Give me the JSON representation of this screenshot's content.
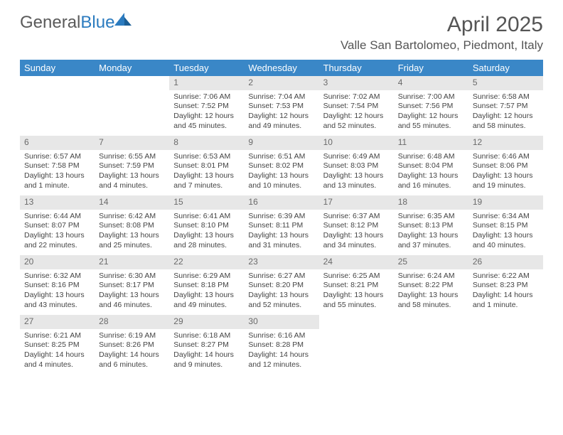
{
  "logo": {
    "text1": "General",
    "text2": "Blue"
  },
  "title": "April 2025",
  "location": "Valle San Bartolomeo, Piedmont, Italy",
  "colors": {
    "header_bg": "#3a87c7",
    "header_text": "#ffffff",
    "daynum_bg": "#e7e7e7",
    "daynum_text": "#6a6a6a",
    "body_text": "#444444",
    "title_text": "#555555",
    "logo_gray": "#5a5a5a",
    "logo_blue": "#2b7bbf",
    "background": "#ffffff"
  },
  "fonts": {
    "title_size": 30,
    "location_size": 17,
    "header_size": 13,
    "daynum_size": 12,
    "body_size": 10.5
  },
  "day_headers": [
    "Sunday",
    "Monday",
    "Tuesday",
    "Wednesday",
    "Thursday",
    "Friday",
    "Saturday"
  ],
  "weeks": [
    [
      {
        "empty": true
      },
      {
        "empty": true
      },
      {
        "num": "1",
        "sunrise": "Sunrise: 7:06 AM",
        "sunset": "Sunset: 7:52 PM",
        "daylight": "Daylight: 12 hours and 45 minutes."
      },
      {
        "num": "2",
        "sunrise": "Sunrise: 7:04 AM",
        "sunset": "Sunset: 7:53 PM",
        "daylight": "Daylight: 12 hours and 49 minutes."
      },
      {
        "num": "3",
        "sunrise": "Sunrise: 7:02 AM",
        "sunset": "Sunset: 7:54 PM",
        "daylight": "Daylight: 12 hours and 52 minutes."
      },
      {
        "num": "4",
        "sunrise": "Sunrise: 7:00 AM",
        "sunset": "Sunset: 7:56 PM",
        "daylight": "Daylight: 12 hours and 55 minutes."
      },
      {
        "num": "5",
        "sunrise": "Sunrise: 6:58 AM",
        "sunset": "Sunset: 7:57 PM",
        "daylight": "Daylight: 12 hours and 58 minutes."
      }
    ],
    [
      {
        "num": "6",
        "sunrise": "Sunrise: 6:57 AM",
        "sunset": "Sunset: 7:58 PM",
        "daylight": "Daylight: 13 hours and 1 minute."
      },
      {
        "num": "7",
        "sunrise": "Sunrise: 6:55 AM",
        "sunset": "Sunset: 7:59 PM",
        "daylight": "Daylight: 13 hours and 4 minutes."
      },
      {
        "num": "8",
        "sunrise": "Sunrise: 6:53 AM",
        "sunset": "Sunset: 8:01 PM",
        "daylight": "Daylight: 13 hours and 7 minutes."
      },
      {
        "num": "9",
        "sunrise": "Sunrise: 6:51 AM",
        "sunset": "Sunset: 8:02 PM",
        "daylight": "Daylight: 13 hours and 10 minutes."
      },
      {
        "num": "10",
        "sunrise": "Sunrise: 6:49 AM",
        "sunset": "Sunset: 8:03 PM",
        "daylight": "Daylight: 13 hours and 13 minutes."
      },
      {
        "num": "11",
        "sunrise": "Sunrise: 6:48 AM",
        "sunset": "Sunset: 8:04 PM",
        "daylight": "Daylight: 13 hours and 16 minutes."
      },
      {
        "num": "12",
        "sunrise": "Sunrise: 6:46 AM",
        "sunset": "Sunset: 8:06 PM",
        "daylight": "Daylight: 13 hours and 19 minutes."
      }
    ],
    [
      {
        "num": "13",
        "sunrise": "Sunrise: 6:44 AM",
        "sunset": "Sunset: 8:07 PM",
        "daylight": "Daylight: 13 hours and 22 minutes."
      },
      {
        "num": "14",
        "sunrise": "Sunrise: 6:42 AM",
        "sunset": "Sunset: 8:08 PM",
        "daylight": "Daylight: 13 hours and 25 minutes."
      },
      {
        "num": "15",
        "sunrise": "Sunrise: 6:41 AM",
        "sunset": "Sunset: 8:10 PM",
        "daylight": "Daylight: 13 hours and 28 minutes."
      },
      {
        "num": "16",
        "sunrise": "Sunrise: 6:39 AM",
        "sunset": "Sunset: 8:11 PM",
        "daylight": "Daylight: 13 hours and 31 minutes."
      },
      {
        "num": "17",
        "sunrise": "Sunrise: 6:37 AM",
        "sunset": "Sunset: 8:12 PM",
        "daylight": "Daylight: 13 hours and 34 minutes."
      },
      {
        "num": "18",
        "sunrise": "Sunrise: 6:35 AM",
        "sunset": "Sunset: 8:13 PM",
        "daylight": "Daylight: 13 hours and 37 minutes."
      },
      {
        "num": "19",
        "sunrise": "Sunrise: 6:34 AM",
        "sunset": "Sunset: 8:15 PM",
        "daylight": "Daylight: 13 hours and 40 minutes."
      }
    ],
    [
      {
        "num": "20",
        "sunrise": "Sunrise: 6:32 AM",
        "sunset": "Sunset: 8:16 PM",
        "daylight": "Daylight: 13 hours and 43 minutes."
      },
      {
        "num": "21",
        "sunrise": "Sunrise: 6:30 AM",
        "sunset": "Sunset: 8:17 PM",
        "daylight": "Daylight: 13 hours and 46 minutes."
      },
      {
        "num": "22",
        "sunrise": "Sunrise: 6:29 AM",
        "sunset": "Sunset: 8:18 PM",
        "daylight": "Daylight: 13 hours and 49 minutes."
      },
      {
        "num": "23",
        "sunrise": "Sunrise: 6:27 AM",
        "sunset": "Sunset: 8:20 PM",
        "daylight": "Daylight: 13 hours and 52 minutes."
      },
      {
        "num": "24",
        "sunrise": "Sunrise: 6:25 AM",
        "sunset": "Sunset: 8:21 PM",
        "daylight": "Daylight: 13 hours and 55 minutes."
      },
      {
        "num": "25",
        "sunrise": "Sunrise: 6:24 AM",
        "sunset": "Sunset: 8:22 PM",
        "daylight": "Daylight: 13 hours and 58 minutes."
      },
      {
        "num": "26",
        "sunrise": "Sunrise: 6:22 AM",
        "sunset": "Sunset: 8:23 PM",
        "daylight": "Daylight: 14 hours and 1 minute."
      }
    ],
    [
      {
        "num": "27",
        "sunrise": "Sunrise: 6:21 AM",
        "sunset": "Sunset: 8:25 PM",
        "daylight": "Daylight: 14 hours and 4 minutes."
      },
      {
        "num": "28",
        "sunrise": "Sunrise: 6:19 AM",
        "sunset": "Sunset: 8:26 PM",
        "daylight": "Daylight: 14 hours and 6 minutes."
      },
      {
        "num": "29",
        "sunrise": "Sunrise: 6:18 AM",
        "sunset": "Sunset: 8:27 PM",
        "daylight": "Daylight: 14 hours and 9 minutes."
      },
      {
        "num": "30",
        "sunrise": "Sunrise: 6:16 AM",
        "sunset": "Sunset: 8:28 PM",
        "daylight": "Daylight: 14 hours and 12 minutes."
      },
      {
        "empty": true
      },
      {
        "empty": true
      },
      {
        "empty": true
      }
    ]
  ]
}
